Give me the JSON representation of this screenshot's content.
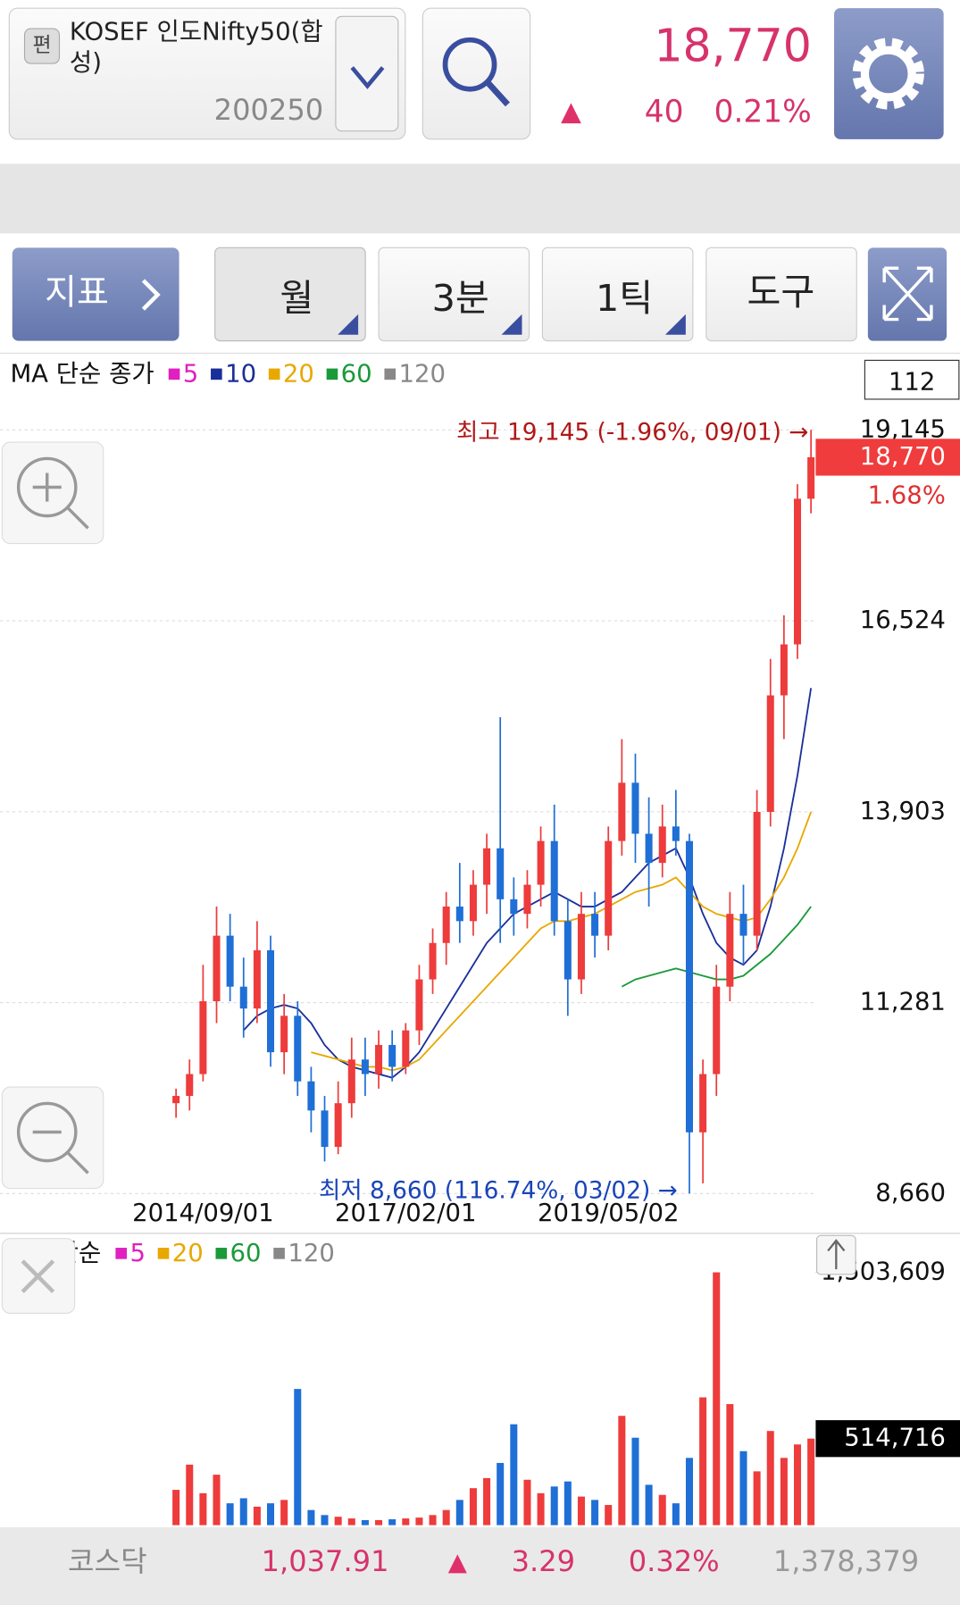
{
  "header": {
    "badge": "편",
    "name": "KOSEF 인도Nifty50(합성)",
    "code": "200250",
    "price": "18,770",
    "arrow": "▲",
    "change": "40",
    "change_pct": "0.21%"
  },
  "toolbar": {
    "indicator": "지표",
    "buttons": [
      "월",
      "3분",
      "1틱",
      "도구"
    ]
  },
  "chart_data": [
    {
      "type": "candlestick",
      "title": "MA 단순 종가",
      "visible_count": 112,
      "categories": [
        null,
        null,
        "2014/09/01",
        null,
        null,
        null,
        null,
        null,
        null,
        null,
        null,
        null,
        null,
        null,
        null,
        null,
        null,
        "2017/02/01",
        null,
        null,
        null,
        null,
        null,
        null,
        null,
        null,
        null,
        null,
        null,
        null,
        null,
        null,
        "2019/05/02",
        null,
        null,
        null,
        null,
        null,
        null,
        null,
        null,
        null,
        null,
        null,
        null,
        null,
        null,
        null
      ],
      "open": [
        9900,
        10000,
        10300,
        11300,
        12200,
        11500,
        11200,
        12000,
        10600,
        11100,
        10200,
        9800,
        9300,
        9900,
        10500,
        10300,
        10700,
        10400,
        10900,
        11600,
        12100,
        12600,
        12400,
        12900,
        13400,
        12700,
        12500,
        12900,
        13500,
        12400,
        11600,
        12500,
        12200,
        13500,
        14300,
        13600,
        13200,
        13700,
        13500,
        9500,
        10300,
        11500,
        12500,
        12200,
        13900,
        15500,
        16200,
        18200
      ],
      "high": [
        10100,
        10500,
        11800,
        12600,
        12500,
        11900,
        12400,
        12200,
        11400,
        11300,
        10400,
        10000,
        10200,
        10800,
        10800,
        10900,
        10900,
        11000,
        11800,
        12300,
        12800,
        13200,
        13100,
        13600,
        15200,
        13000,
        13100,
        13700,
        14000,
        12700,
        12800,
        12800,
        13700,
        14900,
        14700,
        14100,
        14000,
        14200,
        13600,
        10500,
        11800,
        12800,
        12900,
        14200,
        16000,
        16600,
        18400,
        19145
      ],
      "low": [
        9700,
        9800,
        10200,
        11000,
        11300,
        10800,
        11000,
        10400,
        10300,
        10000,
        9500,
        9100,
        9200,
        9700,
        10000,
        10100,
        10200,
        10300,
        10700,
        11400,
        11800,
        12100,
        12200,
        12500,
        12100,
        12200,
        12300,
        12600,
        12200,
        11100,
        11400,
        11900,
        12000,
        13300,
        13200,
        12600,
        13000,
        13300,
        8660,
        8800,
        10000,
        11300,
        11800,
        12000,
        13700,
        14900,
        16000,
        18000
      ],
      "close": [
        10000,
        10300,
        11300,
        12200,
        11500,
        11200,
        12000,
        10600,
        11100,
        10200,
        9800,
        9300,
        9900,
        10500,
        10300,
        10700,
        10400,
        10900,
        11600,
        12100,
        12600,
        12400,
        12900,
        13400,
        12700,
        12500,
        12900,
        13500,
        12400,
        11600,
        12500,
        12200,
        13500,
        14300,
        13600,
        13200,
        13700,
        13500,
        9500,
        10300,
        11500,
        12500,
        12200,
        13900,
        15500,
        16200,
        18200,
        18770
      ],
      "up_color": "#ee3b3b",
      "down_color": "#1f6fd6",
      "ylim": [
        8660,
        19145
      ],
      "yticks": [
        {
          "value": 8660,
          "label": "8,660"
        },
        {
          "value": 11281,
          "label": "11,281"
        },
        {
          "value": 13903,
          "label": "13,903"
        },
        {
          "value": 16524,
          "label": "16,524"
        },
        {
          "value": 19145,
          "label": "19,145"
        }
      ],
      "grid": true,
      "ma": [
        {
          "name": "5",
          "color": "#e020c0"
        },
        {
          "name": "10",
          "color": "#1a2f9a",
          "values": [
            null,
            null,
            null,
            null,
            null,
            10900,
            11100,
            11200,
            11250,
            11200,
            11000,
            10700,
            10500,
            10400,
            10350,
            10300,
            10250,
            10400,
            10600,
            10900,
            11200,
            11500,
            11800,
            12100,
            12300,
            12500,
            12600,
            12700,
            12800,
            12700,
            12600,
            12600,
            12700,
            12800,
            13000,
            13200,
            13300,
            13400,
            13000,
            12500,
            12100,
            11900,
            11800,
            12000,
            12600,
            13400,
            14400,
            15600
          ]
        },
        {
          "name": "20",
          "color": "#e8a800",
          "values": [
            null,
            null,
            null,
            null,
            null,
            null,
            null,
            null,
            null,
            null,
            10600,
            10550,
            10500,
            10450,
            10400,
            10400,
            10350,
            10400,
            10500,
            10700,
            10900,
            11100,
            11300,
            11500,
            11700,
            11900,
            12100,
            12300,
            12400,
            12400,
            12450,
            12500,
            12600,
            12700,
            12800,
            12850,
            12900,
            13000,
            12800,
            12600,
            12500,
            12450,
            12400,
            12450,
            12700,
            13000,
            13400,
            13900
          ]
        },
        {
          "name": "60",
          "color": "#1a9a3a",
          "values": [
            null,
            null,
            null,
            null,
            null,
            null,
            null,
            null,
            null,
            null,
            null,
            null,
            null,
            null,
            null,
            null,
            null,
            null,
            null,
            null,
            null,
            null,
            null,
            null,
            null,
            null,
            null,
            null,
            null,
            null,
            null,
            null,
            null,
            11500,
            11600,
            11650,
            11700,
            11750,
            11700,
            11650,
            11600,
            11600,
            11650,
            11800,
            11950,
            12150,
            12350,
            12600
          ]
        },
        {
          "name": "120",
          "color": "#888888"
        }
      ],
      "annotations": {
        "high": "최고 19,145 (-1.96%, 09/01) →",
        "low": "최저 8,660 (116.74%, 03/02) →"
      },
      "current": {
        "value": 18770,
        "label": "18,770"
      },
      "change_label": "1.68%"
    },
    {
      "type": "bar",
      "title": "MA 단순",
      "values": [
        210000,
        360000,
        190000,
        300000,
        130000,
        160000,
        110000,
        130000,
        150000,
        810000,
        90000,
        60000,
        50000,
        40000,
        30000,
        30000,
        35000,
        40000,
        45000,
        60000,
        90000,
        150000,
        220000,
        280000,
        370000,
        600000,
        270000,
        190000,
        230000,
        260000,
        170000,
        150000,
        120000,
        650000,
        520000,
        240000,
        180000,
        130000,
        400000,
        760000,
        1503609,
        720000,
        440000,
        320000,
        560000,
        400000,
        480000,
        514716
      ],
      "ylim": [
        0,
        1503609
      ],
      "yticks": [
        {
          "value": 1503609,
          "label": "1,503,609"
        }
      ],
      "current": {
        "value": 514716,
        "label": "514,716"
      },
      "ma": [
        {
          "name": "5",
          "color": "#e020c0"
        },
        {
          "name": "20",
          "color": "#e8a800"
        },
        {
          "name": "60",
          "color": "#1a9a3a"
        },
        {
          "name": "120",
          "color": "#888888"
        }
      ]
    }
  ],
  "footer": {
    "index_name": "코스닥",
    "value": "1,037.91",
    "arrow": "▲",
    "change": "3.29",
    "change_pct": "0.32%",
    "volume": "1,378,379"
  }
}
